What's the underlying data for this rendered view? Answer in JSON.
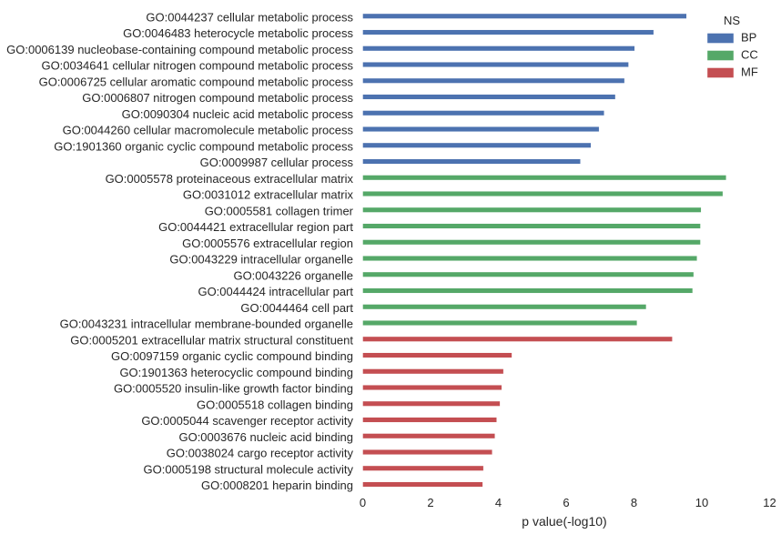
{
  "chart_data": {
    "type": "bar",
    "orientation": "horizontal",
    "xlabel": "p value(-log10)",
    "ylabel": "",
    "xlim": [
      0,
      12
    ],
    "xticks": [
      0,
      2,
      4,
      6,
      8,
      10,
      12
    ],
    "grid": false,
    "legend": {
      "title": "NS",
      "placement": "top-right",
      "entries": [
        {
          "name": "BP",
          "color": "#4c72b0"
        },
        {
          "name": "CC",
          "color": "#55a868"
        },
        {
          "name": "MF",
          "color": "#c44e52"
        }
      ]
    },
    "categories": [
      "GO:0044237 cellular metabolic process",
      "GO:0046483 heterocycle metabolic process",
      "GO:0006139 nucleobase-containing compound metabolic process",
      "GO:0034641 cellular nitrogen compound metabolic process",
      "GO:0006725 cellular aromatic compound metabolic process",
      "GO:0006807 nitrogen compound metabolic process",
      "GO:0090304 nucleic acid metabolic process",
      "GO:0044260 cellular macromolecule metabolic process",
      "GO:1901360 organic cyclic compound metabolic process",
      "GO:0009987 cellular process",
      "GO:0005578 proteinaceous extracellular matrix",
      "GO:0031012 extracellular matrix",
      "GO:0005581 collagen trimer",
      "GO:0044421 extracellular region part",
      "GO:0005576 extracellular region",
      "GO:0043229 intracellular organelle",
      "GO:0043226 organelle",
      "GO:0044424 intracellular part",
      "GO:0044464 cell part",
      "GO:0043231 intracellular membrane-bounded organelle",
      "GO:0005201 extracellular matrix structural constituent",
      "GO:0097159 organic cyclic compound binding",
      "GO:1901363 heterocyclic compound binding",
      "GO:0005520 insulin-like growth factor binding",
      "GO:0005518 collagen binding",
      "GO:0005044 scavenger receptor activity",
      "GO:0003676 nucleic acid binding",
      "GO:0038024 cargo receptor activity",
      "GO:0005198 structural molecule activity",
      "GO:0008201 heparin binding"
    ],
    "groups": [
      "BP",
      "BP",
      "BP",
      "BP",
      "BP",
      "BP",
      "BP",
      "BP",
      "BP",
      "BP",
      "CC",
      "CC",
      "CC",
      "CC",
      "CC",
      "CC",
      "CC",
      "CC",
      "CC",
      "CC",
      "MF",
      "MF",
      "MF",
      "MF",
      "MF",
      "MF",
      "MF",
      "MF",
      "MF",
      "MF"
    ],
    "values": [
      9.55,
      8.58,
      8.02,
      7.84,
      7.72,
      7.45,
      7.12,
      6.97,
      6.73,
      6.42,
      10.72,
      10.62,
      9.98,
      9.96,
      9.96,
      9.86,
      9.76,
      9.73,
      8.36,
      8.09,
      9.13,
      4.4,
      4.15,
      4.1,
      4.05,
      3.95,
      3.9,
      3.82,
      3.56,
      3.54
    ]
  }
}
